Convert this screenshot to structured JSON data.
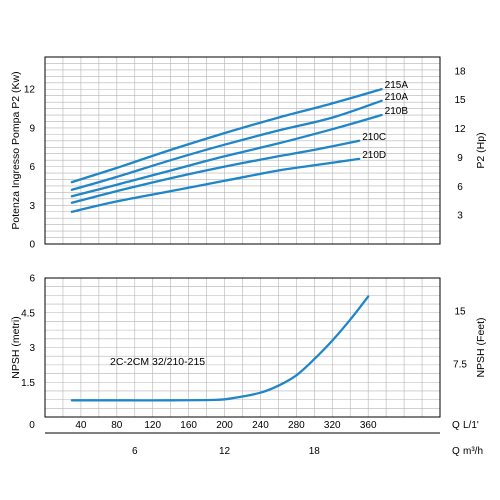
{
  "colors": {
    "curve": "#1f86c8",
    "grid": "#b4b4b4",
    "axis": "#000000",
    "plot_bg": "#ffffff"
  },
  "chart_data": [
    {
      "type": "line",
      "panel": "power",
      "ylabel": "Potenza Ingresso Pompa P2 (Kw)",
      "ylabel_right": "P2 (Hp)",
      "x_units": "L/1'",
      "xlim": [
        0,
        440
      ],
      "ylim": [
        0,
        14.5
      ],
      "yticks": [
        0,
        3,
        6,
        9,
        12
      ],
      "yticks_right": [
        3,
        6,
        9,
        12,
        15,
        18
      ],
      "grid": true,
      "series": [
        {
          "name": "215A",
          "x": [
            30,
            80,
            140,
            200,
            260,
            320,
            375
          ],
          "y": [
            4.8,
            5.9,
            7.3,
            8.6,
            9.8,
            10.9,
            12.0
          ]
        },
        {
          "name": "210A",
          "x": [
            30,
            80,
            140,
            200,
            260,
            320,
            375
          ],
          "y": [
            4.2,
            5.2,
            6.5,
            7.7,
            8.8,
            9.8,
            11.1
          ]
        },
        {
          "name": "210B",
          "x": [
            30,
            80,
            140,
            200,
            260,
            320,
            375
          ],
          "y": [
            3.7,
            4.6,
            5.7,
            6.8,
            7.8,
            8.9,
            10.0
          ]
        },
        {
          "name": "210C",
          "x": [
            30,
            80,
            140,
            200,
            260,
            300,
            350
          ],
          "y": [
            3.2,
            4.1,
            5.1,
            6.0,
            6.8,
            7.3,
            8.0
          ]
        },
        {
          "name": "210D",
          "x": [
            30,
            80,
            140,
            200,
            260,
            300,
            350
          ],
          "y": [
            2.5,
            3.3,
            4.1,
            4.9,
            5.7,
            6.1,
            6.6
          ]
        }
      ]
    },
    {
      "type": "line",
      "panel": "npsh",
      "annotation": "2C-2CM 32/210-215",
      "ylabel": "NPSH (metri)",
      "ylabel_right": "NPSH (Feet)",
      "xlabel": "Q L/1'",
      "xlabel_secondary": "Q m³/h",
      "xlim": [
        0,
        440
      ],
      "ylim": [
        0,
        6
      ],
      "yticks": [
        0,
        1.5,
        3,
        4.5,
        6
      ],
      "yticks_right": [
        7.5,
        15
      ],
      "xticks": [
        40,
        80,
        120,
        160,
        200,
        240,
        280,
        320,
        360
      ],
      "xticks_secondary": [
        6,
        12,
        18
      ],
      "grid": true,
      "series": [
        {
          "name": "",
          "x": [
            30,
            80,
            140,
            190,
            210,
            240,
            260,
            280,
            300,
            320,
            340,
            360
          ],
          "y": [
            0.72,
            0.72,
            0.72,
            0.74,
            0.82,
            1.05,
            1.35,
            1.8,
            2.5,
            3.3,
            4.2,
            5.2
          ]
        }
      ]
    }
  ],
  "labels": {
    "zero": "0",
    "q": "Q",
    "l_unit": "L/1'",
    "m3_unit": "m³/h"
  }
}
